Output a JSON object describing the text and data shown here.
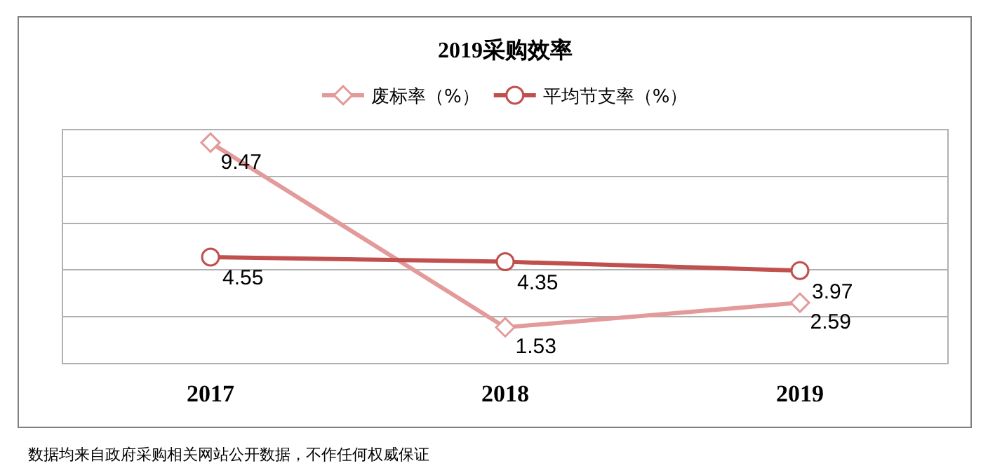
{
  "chart_data": {
    "type": "line",
    "title": "2019采购效率",
    "categories": [
      "2017",
      "2018",
      "2019"
    ],
    "series": [
      {
        "name": "废标率（%）",
        "color": "#e39a9a",
        "values": [
          9.47,
          1.53,
          2.59
        ],
        "marker": "diamond"
      },
      {
        "name": "平均节支率（%）",
        "color": "#c0504d",
        "values": [
          4.55,
          4.35,
          3.97
        ],
        "marker": "circle"
      }
    ],
    "ylim": [
      0,
      10
    ],
    "yticks": [
      {
        "value": 0,
        "label": null
      },
      {
        "value": 2,
        "label": null
      },
      {
        "value": 4,
        "label": null
      },
      {
        "value": 6,
        "label": null
      },
      {
        "value": 8,
        "label": null
      },
      {
        "value": 10,
        "label": null
      }
    ],
    "tick_labels": "x",
    "grid": "y",
    "legend": "top",
    "data_labels": true,
    "line_style": "solid",
    "annotations": [
      "数据均来自政府采购相关网站公开数据，不作任何权威保证"
    ]
  }
}
